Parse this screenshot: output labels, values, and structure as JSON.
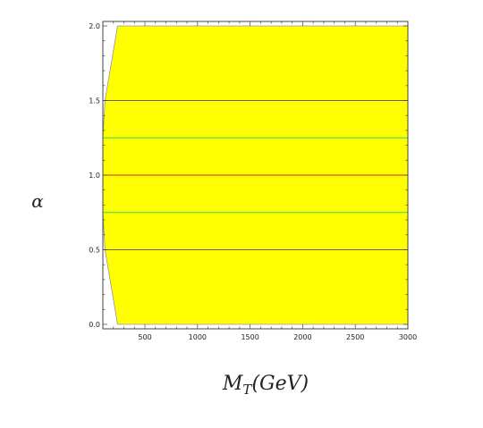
{
  "chart_data": {
    "type": "area",
    "title": "",
    "xlabel": "M_T(GeV)",
    "ylabel": "α",
    "xlim": [
      100,
      3000
    ],
    "ylim": [
      -0.03,
      2.03
    ],
    "x_ticks": [
      500,
      1000,
      1500,
      2000,
      2500,
      3000
    ],
    "x_tick_labels": [
      "500",
      "1000",
      "1500",
      "2000",
      "2500",
      "3000"
    ],
    "y_ticks": [
      0.0,
      0.5,
      1.0,
      1.5,
      2.0
    ],
    "y_tick_labels": [
      "0.0",
      "0.5",
      "1.0",
      "1.5",
      "2.0"
    ],
    "region": {
      "color": "#ffff00",
      "outline_color": "#9a8fb0",
      "boundary": [
        {
          "x": 240,
          "y": 0.0
        },
        {
          "x": 120,
          "y": 0.5
        },
        {
          "x": 100,
          "y": 0.75
        },
        {
          "x": 100,
          "y": 1.25
        },
        {
          "x": 120,
          "y": 1.5
        },
        {
          "x": 240,
          "y": 2.0
        },
        {
          "x": 3000,
          "y": 2.0
        },
        {
          "x": 3000,
          "y": 0.0
        }
      ]
    },
    "series": [
      {
        "x": [
          100,
          3000
        ],
        "y": [
          0.5,
          0.5
        ],
        "color": "#6b5a4a"
      },
      {
        "x": [
          100,
          3000
        ],
        "y": [
          0.75,
          0.75
        ],
        "color": "#33d46b"
      },
      {
        "x": [
          100,
          3000
        ],
        "y": [
          1.0,
          1.0
        ],
        "color": "#e0201c"
      },
      {
        "x": [
          100,
          3000
        ],
        "y": [
          1.25,
          1.25
        ],
        "color": "#33d46b"
      },
      {
        "x": [
          100,
          3000
        ],
        "y": [
          1.5,
          1.5
        ],
        "color": "#6b5a4a"
      }
    ],
    "frame": true,
    "grid": false
  }
}
